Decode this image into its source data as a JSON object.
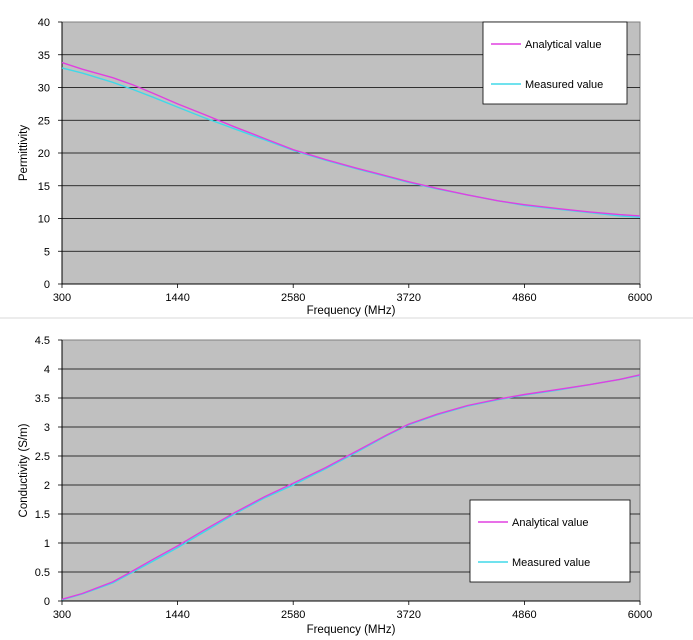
{
  "chart_data": [
    {
      "type": "line",
      "xlabel": "Frequency (MHz)",
      "ylabel": "Permittivity",
      "xlim": [
        300,
        6000
      ],
      "ylim": [
        0,
        40
      ],
      "xticks": [
        "300",
        "1440",
        "2580",
        "3720",
        "4860",
        "6000"
      ],
      "yticks": [
        "0",
        "5",
        "10",
        "15",
        "20",
        "25",
        "30",
        "35",
        "40"
      ],
      "grid": "horizontal",
      "legend_position": "top-right",
      "x": [
        300,
        500,
        800,
        1000,
        1200,
        1440,
        1700,
        2000,
        2300,
        2580,
        2900,
        3200,
        3500,
        3720,
        4000,
        4300,
        4600,
        4860,
        5200,
        5500,
        5800,
        6000
      ],
      "series": [
        {
          "name": "Analytical value",
          "color": "#e040e0",
          "values": [
            33.8,
            32.8,
            31.5,
            30.4,
            29.1,
            27.5,
            25.9,
            24.0,
            22.2,
            20.5,
            19.0,
            17.7,
            16.5,
            15.6,
            14.6,
            13.6,
            12.7,
            12.1,
            11.5,
            11.0,
            10.6,
            10.4
          ]
        },
        {
          "name": "Measured value",
          "color": "#40d8e8",
          "values": [
            33.0,
            32.2,
            30.8,
            29.7,
            28.5,
            27.0,
            25.4,
            23.7,
            22.0,
            20.4,
            18.9,
            17.6,
            16.4,
            15.5,
            14.5,
            13.6,
            12.7,
            12.0,
            11.4,
            10.9,
            10.4,
            10.2
          ]
        }
      ]
    },
    {
      "type": "line",
      "xlabel": "Frequency (MHz)",
      "ylabel": "Conductivity (S/m)",
      "xlim": [
        300,
        6000
      ],
      "ylim": [
        0,
        4.5
      ],
      "xticks": [
        "300",
        "1440",
        "2580",
        "3720",
        "4860",
        "6000"
      ],
      "yticks": [
        "0",
        "0.5",
        "1",
        "1.5",
        "2",
        "2.5",
        "3",
        "3.5",
        "4",
        "4.5"
      ],
      "grid": "horizontal",
      "legend_position": "bottom-right",
      "x": [
        300,
        500,
        800,
        1000,
        1200,
        1440,
        1700,
        2000,
        2300,
        2580,
        2900,
        3200,
        3500,
        3720,
        4000,
        4300,
        4600,
        4860,
        5200,
        5500,
        5800,
        6000
      ],
      "series": [
        {
          "name": "Analytical value",
          "color": "#e040e0",
          "values": [
            0.03,
            0.13,
            0.33,
            0.52,
            0.72,
            0.95,
            1.22,
            1.52,
            1.8,
            2.03,
            2.3,
            2.58,
            2.86,
            3.05,
            3.22,
            3.37,
            3.48,
            3.56,
            3.65,
            3.73,
            3.82,
            3.9
          ]
        },
        {
          "name": "Measured value",
          "color": "#40d8e8",
          "values": [
            0.02,
            0.12,
            0.31,
            0.5,
            0.69,
            0.92,
            1.19,
            1.5,
            1.78,
            2.0,
            2.28,
            2.56,
            2.85,
            3.04,
            3.21,
            3.36,
            3.47,
            3.55,
            3.64,
            3.73,
            3.82,
            3.89
          ]
        }
      ]
    }
  ]
}
